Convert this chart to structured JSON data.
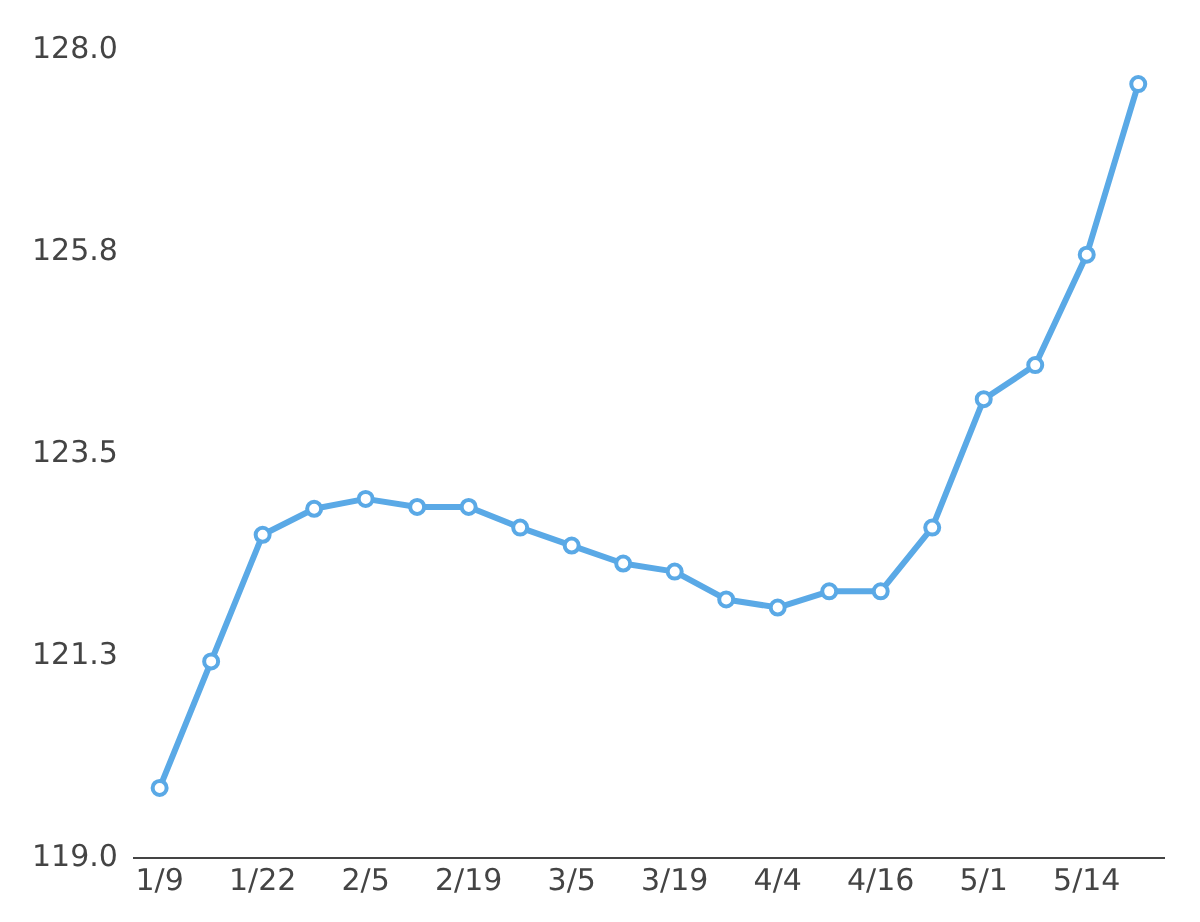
{
  "chart_data": {
    "type": "line",
    "categories": [
      "1/9",
      null,
      "1/22",
      null,
      "2/5",
      null,
      "2/19",
      null,
      "3/5",
      null,
      "3/19",
      null,
      "4/4",
      null,
      "4/16",
      null,
      "5/1",
      null,
      "5/14",
      null
    ],
    "series": [
      {
        "color": "#5aa9e6",
        "values": [
          119.78,
          121.19,
          122.6,
          122.89,
          123.0,
          122.91,
          122.91,
          122.68,
          122.48,
          122.28,
          122.19,
          121.88,
          121.79,
          121.97,
          121.97,
          122.68,
          124.11,
          124.49,
          125.72,
          127.62
        ]
      }
    ],
    "ylim": [
      119,
      128
    ],
    "yticks": [
      {
        "value": 119,
        "label": "119.0"
      },
      {
        "value": 121.25,
        "label": "121.3"
      },
      {
        "value": 123.5,
        "label": "123.5"
      },
      {
        "value": 125.75,
        "label": "125.8"
      },
      {
        "value": 128,
        "label": "128.0"
      }
    ],
    "grid": false,
    "legend": false,
    "marker": "circle",
    "line_style": "solid"
  }
}
